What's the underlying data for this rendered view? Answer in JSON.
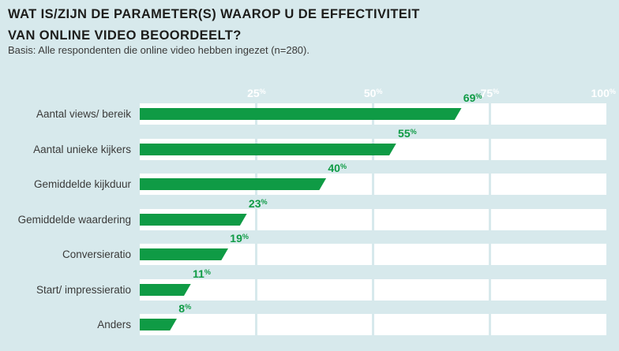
{
  "header": {
    "title_line1": "WAT IS/ZIJN DE PARAMETER(S) WAAROP U DE EFFECTIVITEIT",
    "title_line2": "VAN ONLINE VIDEO BEOORDEELT?",
    "subtitle": "Basis: Alle respondenten die online video hebben ingezet (n=280)."
  },
  "percent_sign": "%",
  "chart_data": {
    "type": "bar",
    "orientation": "horizontal",
    "title": "WAT IS/ZIJN DE PARAMETER(S) WAAROP U DE EFFECTIVITEIT VAN ONLINE VIDEO BEOORDEELT?",
    "subtitle": "Basis: Alle respondenten die online video hebben ingezet (n=280).",
    "categories": [
      "Aantal views/ bereik",
      "Aantal unieke kijkers",
      "Gemiddelde kijkduur",
      "Gemiddelde waardering",
      "Conversieratio",
      "Start/ impressieratio",
      "Anders"
    ],
    "values": [
      69,
      55,
      40,
      23,
      19,
      11,
      8
    ],
    "value_suffix": "%",
    "xlim": [
      0,
      100
    ],
    "x_ticks": [
      25,
      50,
      75,
      100
    ],
    "x_tick_labels": [
      "25",
      "50",
      "75",
      "100"
    ],
    "gridlines_at": [
      25,
      50,
      75
    ],
    "legend": "none",
    "colors": {
      "background": "#d7e9ec",
      "bar": "#0f9b45",
      "row_track": "#ffffff",
      "value_label": "#0f9b45",
      "tick_label": "#ffffff",
      "title_text": "#1d1d1b",
      "body_text": "#3a3a39"
    }
  }
}
